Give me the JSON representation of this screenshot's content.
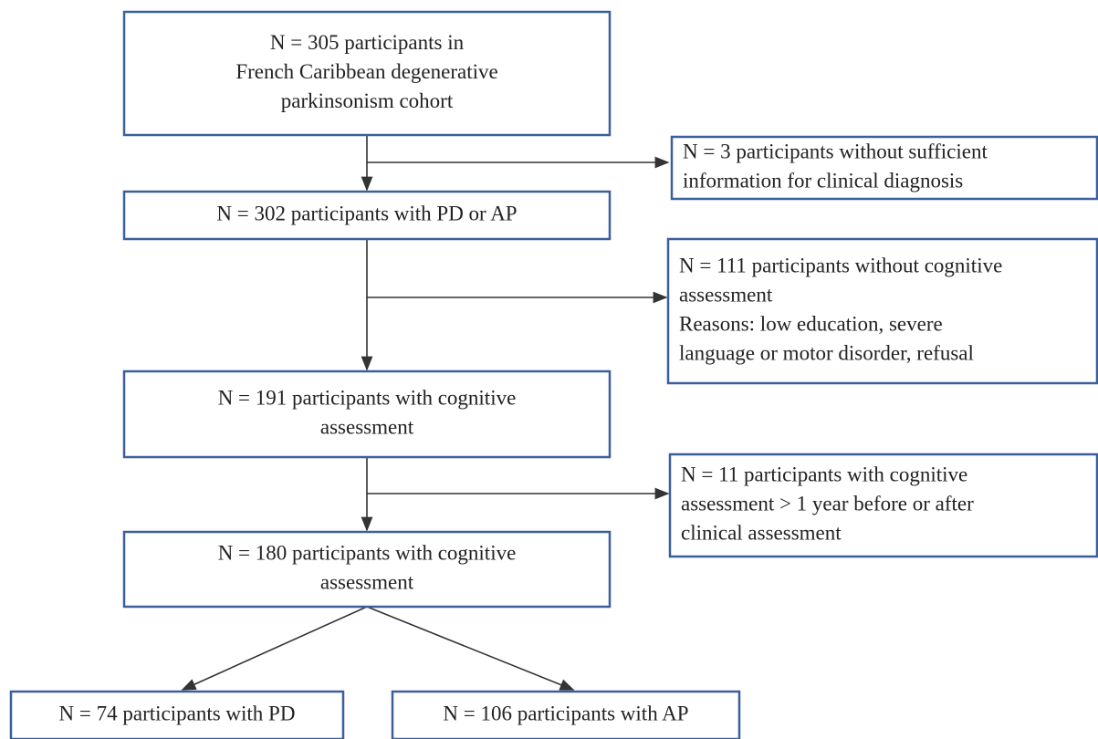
{
  "nodes": [
    {
      "lines": [
        "N = 305 participants in",
        "French Caribbean degenerative",
        "parkinsonism cohort"
      ]
    },
    {
      "lines": [
        "N = 3 participants without sufficient",
        "information for clinical diagnosis"
      ]
    },
    {
      "lines": [
        "N = 302 participants with PD or AP"
      ]
    },
    {
      "lines": [
        "N = 111 participants without cognitive",
        "assessment",
        "Reasons: low education, severe",
        "language or motor disorder, refusal"
      ]
    },
    {
      "lines": [
        "N = 191 participants with cognitive",
        "assessment"
      ]
    },
    {
      "lines": [
        "N = 11 participants with cognitive",
        "assessment > 1 year before or after",
        "clinical assessment"
      ]
    },
    {
      "lines": [
        "N = 180 participants with cognitive",
        "assessment"
      ]
    },
    {
      "lines": [
        "N = 74 participants with PD"
      ]
    },
    {
      "lines": [
        "N = 106 participants with AP"
      ]
    }
  ]
}
